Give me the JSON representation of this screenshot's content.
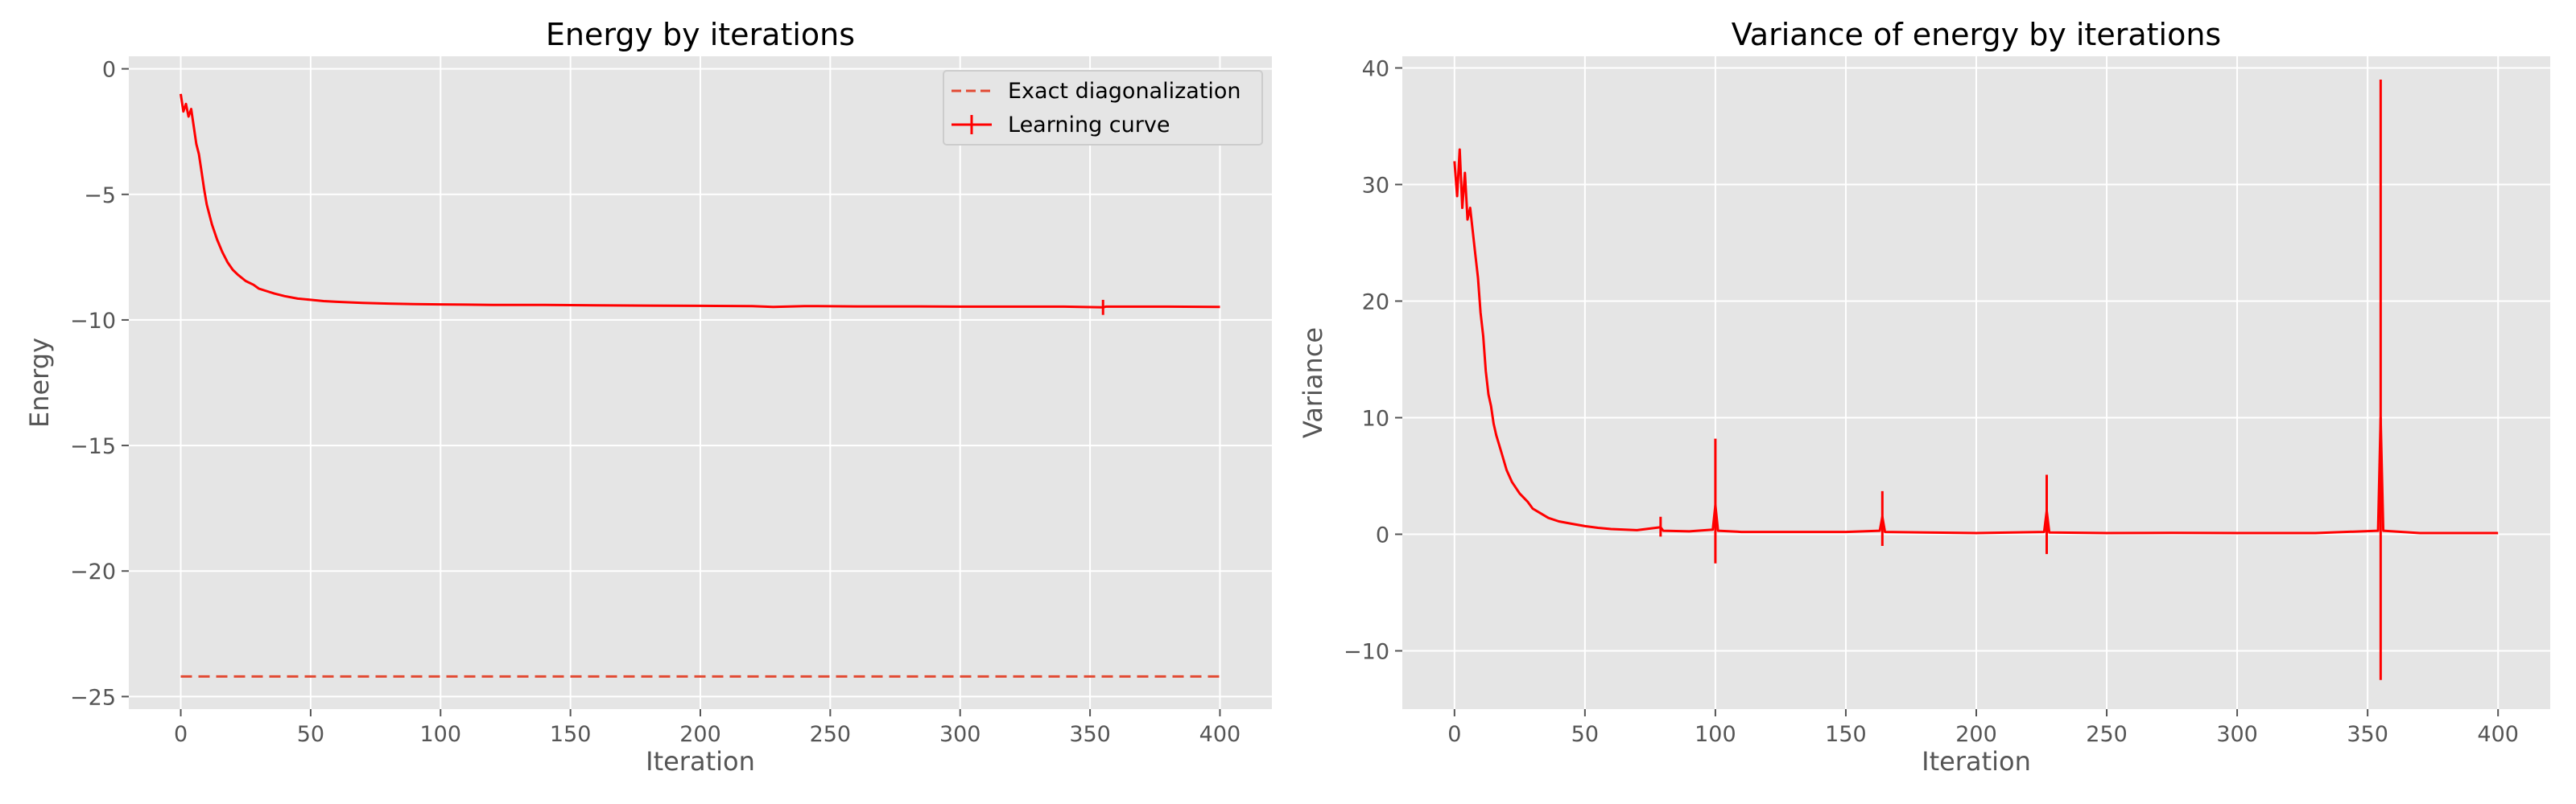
{
  "chart_data": [
    {
      "type": "line",
      "title": "Energy by iterations",
      "xlabel": "Iteration",
      "ylabel": "Energy",
      "xlim": [
        -20,
        420
      ],
      "ylim": [
        -25.5,
        0.5
      ],
      "xticks": [
        0,
        50,
        100,
        150,
        200,
        250,
        300,
        350,
        400
      ],
      "yticks": [
        0,
        -5,
        -10,
        -15,
        -20,
        -25
      ],
      "ytick_labels": [
        "0",
        "−5",
        "−10",
        "−15",
        "−20",
        "−25"
      ],
      "grid": true,
      "legend_position": "top-right",
      "series": [
        {
          "name": "Exact diagonalization",
          "style": "dashed",
          "color": "#e24a33",
          "x": [
            0,
            400
          ],
          "y": [
            -24.2,
            -24.2
          ]
        },
        {
          "name": "Learning curve",
          "style": "solid-with-errorbars",
          "color": "#ff0000",
          "x": [
            0,
            1,
            2,
            3,
            4,
            5,
            6,
            7,
            8,
            9,
            10,
            12,
            14,
            16,
            18,
            20,
            22,
            25,
            28,
            30,
            33,
            36,
            40,
            45,
            50,
            55,
            60,
            70,
            80,
            90,
            100,
            110,
            120,
            140,
            160,
            180,
            200,
            220,
            228,
            240,
            260,
            280,
            300,
            320,
            340,
            355,
            356,
            360,
            380,
            400
          ],
          "y": [
            -1.0,
            -1.7,
            -1.4,
            -1.9,
            -1.6,
            -2.3,
            -3.0,
            -3.4,
            -4.1,
            -4.8,
            -5.4,
            -6.2,
            -6.8,
            -7.3,
            -7.7,
            -8.0,
            -8.2,
            -8.45,
            -8.6,
            -8.75,
            -8.85,
            -8.95,
            -9.05,
            -9.15,
            -9.2,
            -9.25,
            -9.28,
            -9.32,
            -9.35,
            -9.37,
            -9.38,
            -9.39,
            -9.4,
            -9.4,
            -9.42,
            -9.43,
            -9.44,
            -9.45,
            -9.48,
            -9.45,
            -9.46,
            -9.46,
            -9.47,
            -9.47,
            -9.47,
            -9.5,
            -9.47,
            -9.47,
            -9.47,
            -9.48
          ]
        }
      ]
    },
    {
      "type": "line",
      "title": "Variance of energy by iterations",
      "xlabel": "Iteration",
      "ylabel": "Variance",
      "xlim": [
        -20,
        420
      ],
      "ylim": [
        -15,
        41
      ],
      "xticks": [
        0,
        50,
        100,
        150,
        200,
        250,
        300,
        350,
        400
      ],
      "yticks": [
        40,
        30,
        20,
        10,
        0,
        -10
      ],
      "ytick_labels": [
        "40",
        "30",
        "20",
        "10",
        "0",
        "−10"
      ],
      "grid": true,
      "series": [
        {
          "color": "#ff0000",
          "style": "solid-with-errorbars",
          "x": [
            0,
            1,
            2,
            3,
            4,
            5,
            6,
            7,
            8,
            9,
            10,
            11,
            12,
            13,
            14,
            15,
            16,
            18,
            20,
            22,
            25,
            28,
            30,
            33,
            36,
            40,
            45,
            50,
            55,
            60,
            70,
            79,
            80,
            90,
            99,
            100,
            101,
            110,
            130,
            150,
            163,
            164,
            165,
            180,
            200,
            226,
            227,
            228,
            250,
            275,
            300,
            330,
            354,
            355,
            356,
            370,
            400
          ],
          "y": [
            32,
            29,
            33,
            28,
            31,
            27,
            28,
            26,
            24,
            22,
            19,
            17,
            14,
            12,
            11,
            9.5,
            8.5,
            7,
            5.5,
            4.5,
            3.5,
            2.8,
            2.2,
            1.8,
            1.4,
            1.1,
            0.9,
            0.7,
            0.55,
            0.45,
            0.35,
            0.6,
            0.3,
            0.25,
            0.4,
            2.5,
            0.3,
            0.2,
            0.2,
            0.2,
            0.3,
            1.5,
            0.2,
            0.15,
            0.1,
            0.2,
            2.0,
            0.15,
            0.1,
            0.12,
            0.1,
            0.1,
            0.3,
            10,
            0.3,
            0.1,
            0.1
          ]
        }
      ],
      "error_bars": [
        {
          "x": 100,
          "low": -2.5,
          "high": 8.2
        },
        {
          "x": 164,
          "low": -1.0,
          "high": 3.7
        },
        {
          "x": 227,
          "low": -1.7,
          "high": 5.1
        },
        {
          "x": 355,
          "low": -12.5,
          "high": 39.0
        },
        {
          "x": 79,
          "low": -0.2,
          "high": 1.5
        }
      ]
    }
  ]
}
